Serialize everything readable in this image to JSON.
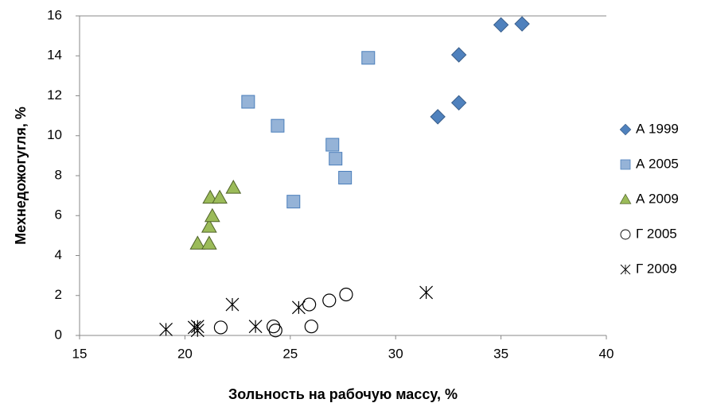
{
  "chart_data": {
    "type": "scatter",
    "x_label": "Зольность на рабочую массу, %",
    "y_label": "Мехнедожогугля, %",
    "xlim": [
      15,
      40
    ],
    "xticks": [
      15,
      20,
      25,
      30,
      35,
      40
    ],
    "ylim": [
      0,
      16
    ],
    "yticks": [
      0,
      2,
      4,
      6,
      8,
      10,
      12,
      14,
      16
    ],
    "legend": "right",
    "series": [
      {
        "name": "А 1999",
        "marker": "diamond",
        "color": "#4f81bd",
        "x": [
          32,
          33,
          33,
          35,
          36
        ],
        "values": [
          10.95,
          11.65,
          14.05,
          15.55,
          15.6
        ]
      },
      {
        "name": "А 2005",
        "marker": "square",
        "color": "#95b3d7",
        "x": [
          23,
          24.4,
          28.7,
          27.0,
          27.15,
          27.6,
          25.15
        ],
        "values": [
          11.7,
          10.5,
          13.9,
          9.55,
          8.85,
          7.9,
          6.7
        ]
      },
      {
        "name": "А 2009",
        "marker": "triangle",
        "color": "#9bbb59",
        "x": [
          20.6,
          21.15,
          21.15,
          21.3,
          21.2,
          21.65,
          22.3
        ],
        "values": [
          4.6,
          4.6,
          5.45,
          5.98,
          6.9,
          6.9,
          7.4
        ]
      },
      {
        "name": "Г 2005",
        "marker": "circle",
        "color": "#000000",
        "x": [
          21.7,
          24.2,
          24.3,
          25.9,
          26.0,
          26.85,
          27.65
        ],
        "values": [
          0.4,
          0.45,
          0.25,
          1.55,
          0.45,
          1.75,
          2.05
        ]
      },
      {
        "name": "Г 2009",
        "marker": "star",
        "color": "#000000",
        "x": [
          19.1,
          20.45,
          20.6,
          20.6,
          22.25,
          23.35,
          25.4,
          31.45
        ],
        "values": [
          0.3,
          0.4,
          0.25,
          0.45,
          1.55,
          0.45,
          1.4,
          2.15
        ]
      }
    ]
  }
}
